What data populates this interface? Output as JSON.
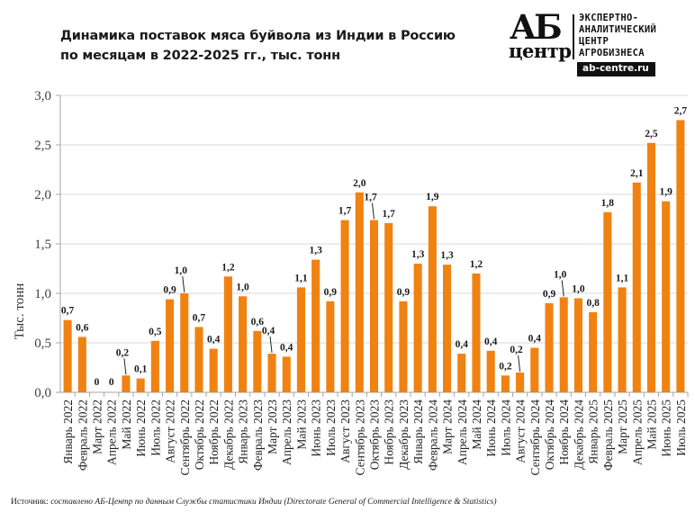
{
  "header": {
    "title_line1": "Динамика поставок мяса буйвола из Индии в Россию",
    "title_line2": "по месяцам в 2022-2025 гг., тыс. тонн"
  },
  "logo": {
    "mark_top": "АБ",
    "mark_bottom": "центр",
    "text_lines": [
      "ЭКСПЕРТНО-",
      "АНАЛИТИЧЕСКИЙ",
      "ЦЕНТР",
      "АГРОБИЗНЕСА"
    ],
    "url": "ab-centre.ru"
  },
  "footer": {
    "source_label": "Источник:",
    "source_text": "составлено АБ-Центр по данным Службы статистики Индии (Directorate General of Commercial Intelligence  & Statistics)"
  },
  "colors": {
    "bar": "#f08212",
    "grid": "#d9d9d9",
    "axis": "#a6a6a6"
  },
  "chart_data": {
    "type": "bar",
    "title": "Динамика поставок мяса буйвола из Индии в Россию по месяцам в 2022-2025 гг., тыс. тонн",
    "xlabel": "",
    "ylabel": "Тыс. тонн",
    "ylim": [
      0,
      3.0
    ],
    "yticks": [
      0,
      0.5,
      1.0,
      1.5,
      2.0,
      2.5,
      3.0
    ],
    "ytick_labels": [
      "0,0",
      "0,5",
      "1,0",
      "1,5",
      "2,0",
      "2,5",
      "3,0"
    ],
    "grid": true,
    "legend": "none",
    "categories": [
      "Январь 2022",
      "Февраль 2022",
      "Март 2022",
      "Апрель 2022",
      "Май 2022",
      "Июнь 2022",
      "Июль 2022",
      "Август 2022",
      "Сентябрь 2022",
      "Октябрь 2022",
      "Ноябрь 2022",
      "Декабрь 2022",
      "Январь 2023",
      "Февраль 2023",
      "Март 2023",
      "Апрель 2023",
      "Май 2023",
      "Июнь 2023",
      "Июль 2023",
      "Август 2023",
      "Сентябрь 2023",
      "Октябрь 2023",
      "Ноябрь 2023",
      "Декабрь 2023",
      "Январь 2024",
      "Февраль 2024",
      "Март 2024",
      "Апрель 2024",
      "Май 2024",
      "Июнь 2024",
      "Июль 2024",
      "Август 2024",
      "Сентябрь 2024",
      "Октябрь 2024",
      "Ноябрь 2024",
      "Декабрь 2024",
      "Январь 2025",
      "Февраль 2025",
      "Март 2025",
      "Апрель 2025",
      "Май 2025",
      "Июнь 2025",
      "Июль 2025"
    ],
    "values": [
      0.73,
      0.56,
      0,
      0,
      0.17,
      0.14,
      0.52,
      0.94,
      1.0,
      0.66,
      0.44,
      1.17,
      0.97,
      0.62,
      0.39,
      0.36,
      1.06,
      1.34,
      0.92,
      1.74,
      2.02,
      1.74,
      1.71,
      0.92,
      1.3,
      1.88,
      1.29,
      0.39,
      1.2,
      0.42,
      0.17,
      0.2,
      0.45,
      0.9,
      0.96,
      0.95,
      0.81,
      1.82,
      1.06,
      2.12,
      2.52,
      1.93,
      2.75
    ],
    "data_labels": [
      "0,7",
      "0,6",
      "0",
      "0",
      "0,2",
      "0,1",
      "0,5",
      "0,9",
      "1,0",
      "0,7",
      "0,4",
      "1,2",
      "1,0",
      "0,6",
      "0,4",
      "0,4",
      "1,1",
      "1,3",
      "0,9",
      "1,7",
      "2,0",
      "1,7",
      "1,7",
      "0,9",
      "1,3",
      "1,9",
      "1,3",
      "0,4",
      "1,2",
      "0,4",
      "0,2",
      "0,2",
      "0,4",
      "0,9",
      "1,0",
      "1,0",
      "0,8",
      "1,8",
      "1,1",
      "2,1",
      "2,5",
      "1,9",
      "2,7"
    ],
    "leader_lines": [
      "Май 2022",
      "Сентябрь 2022",
      "Март 2023",
      "Октябрь 2023",
      "Август 2024",
      "Ноябрь 2024"
    ]
  }
}
